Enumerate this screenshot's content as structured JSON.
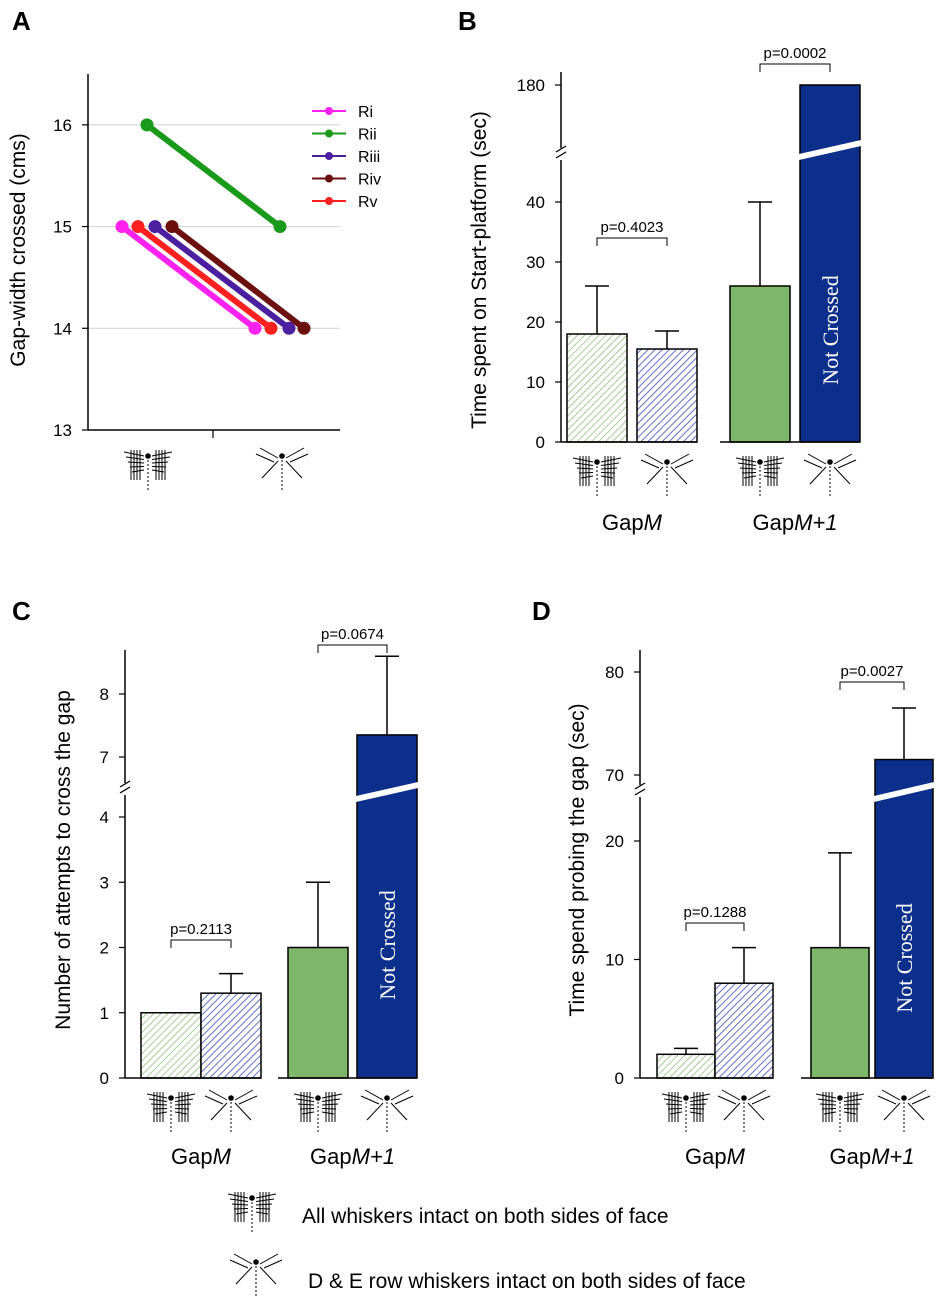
{
  "colors": {
    "light_green": "#bcd9a8",
    "light_blue": "#8a95d6",
    "solid_green": "#7eb66a",
    "solid_blue": "#0d2f8c",
    "Ri": "#ff22ee",
    "Rii": "#1a9a1a",
    "Riii": "#4a1fa0",
    "Riv": "#6b0f0f",
    "Rv": "#ff2020"
  },
  "condition_icons": {
    "all": "all-whiskers-icon",
    "de": "de-row-whiskers-icon"
  },
  "legend": {
    "all_whiskers": "All whiskers intact on both sides of face",
    "de_whiskers": "D & E row whiskers intact on both sides of face"
  },
  "not_crossed": "Not Crossed",
  "chart_data": [
    {
      "panel": "A",
      "type": "line",
      "ylabel": "Gap-width crossed (cms)",
      "ylim": [
        13,
        16.5
      ],
      "yticks": [
        "13",
        "14",
        "15",
        "16"
      ],
      "x": [
        "All whiskers intact",
        "D & E row whiskers intact"
      ],
      "grid": true,
      "legend_position": "top-right",
      "series": [
        {
          "name": "Ri",
          "values": [
            15,
            14
          ]
        },
        {
          "name": "Rii",
          "values": [
            16,
            15
          ]
        },
        {
          "name": "Riii",
          "values": [
            15,
            14
          ]
        },
        {
          "name": "Riv",
          "values": [
            15,
            14
          ]
        },
        {
          "name": "Rv",
          "values": [
            15,
            14
          ]
        }
      ]
    },
    {
      "panel": "B",
      "type": "bar",
      "ylabel": "Time spent on Start-platform (sec)",
      "yticks": [
        "0",
        "10",
        "20",
        "30",
        "40",
        "180"
      ],
      "groups": [
        "GapM",
        "GapM+1"
      ],
      "categories": [
        "All whiskers",
        "D & E row whiskers",
        "All whiskers",
        "D & E row whiskers"
      ],
      "values": [
        18,
        15.5,
        26,
        180
      ],
      "errors": [
        8,
        3,
        14,
        0
      ],
      "pvalues": [
        "p=0.4023",
        "p=0.0002"
      ]
    },
    {
      "panel": "C",
      "type": "bar",
      "ylabel": "Number of attempts to cross the gap",
      "yticks": [
        "0",
        "1",
        "2",
        "3",
        "4",
        "7",
        "8"
      ],
      "groups": [
        "GapM",
        "GapM+1"
      ],
      "categories": [
        "All whiskers",
        "D & E row whiskers",
        "All whiskers",
        "D & E row whiskers"
      ],
      "values": [
        1,
        1.3,
        2,
        7.35
      ],
      "errors": [
        0,
        0.3,
        1,
        1.25
      ],
      "pvalues": [
        "p=0.2113",
        "p=0.0674"
      ]
    },
    {
      "panel": "D",
      "type": "bar",
      "ylabel": "Time spend probing the gap (sec)",
      "yticks": [
        "0",
        "10",
        "20",
        "70",
        "80"
      ],
      "groups": [
        "GapM",
        "GapM+1"
      ],
      "categories": [
        "All whiskers",
        "D & E row whiskers",
        "All whiskers",
        "D & E row whiskers"
      ],
      "values": [
        2,
        8,
        11,
        71.5
      ],
      "errors": [
        0.5,
        3,
        8,
        5
      ],
      "pvalues": [
        "p=0.1288",
        "p=0.0027"
      ]
    }
  ]
}
